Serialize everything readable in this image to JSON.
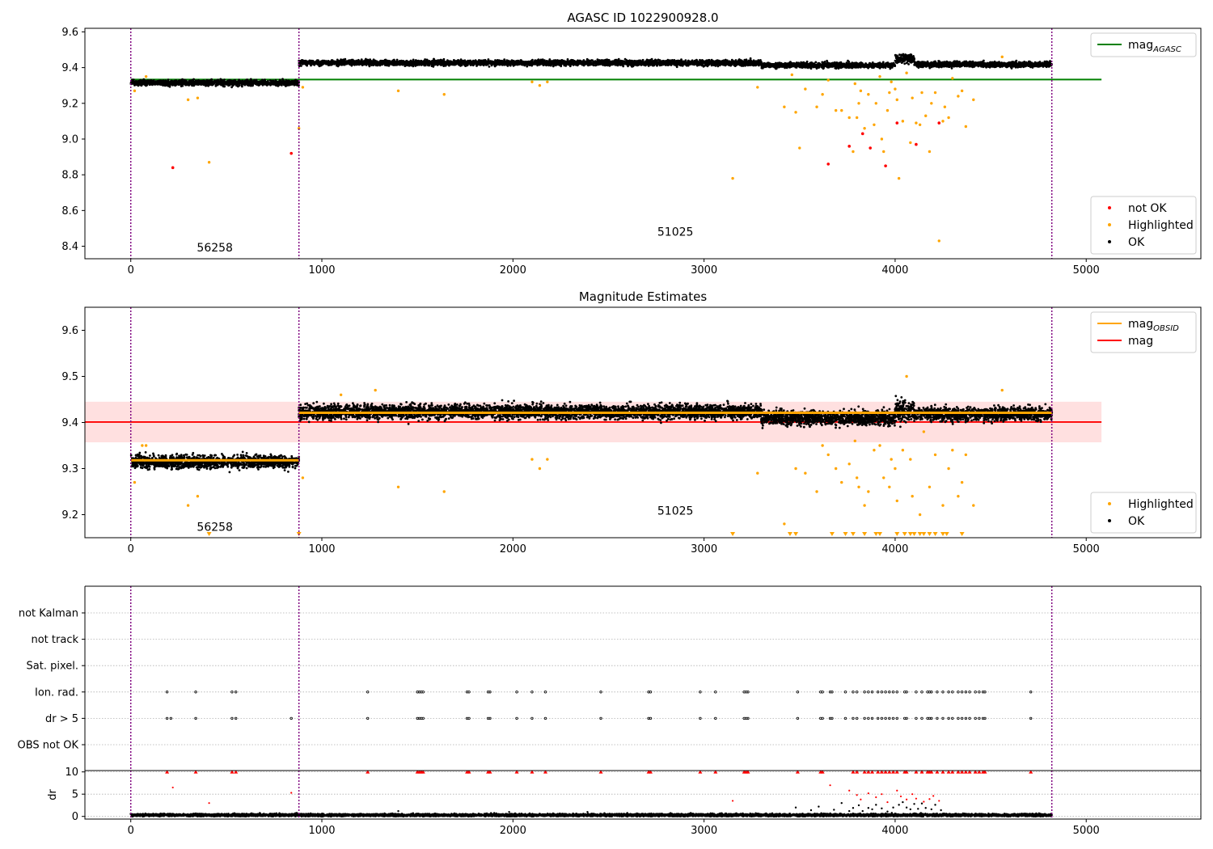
{
  "colors": {
    "ok": "#000000",
    "highlighted": "#ffa500",
    "not_ok": "#ff0000",
    "mag_agasc": "#008000",
    "mag": "#ff0000",
    "mag_obsid": "#ffa500",
    "mag_band": "#ffd6d6",
    "obsid_boundary": "#800080"
  },
  "chart_data": [
    {
      "type": "scatter",
      "title": "AGASC ID 1022900928.0",
      "xlabel": "",
      "ylabel": "",
      "xlim": [
        -240,
        5600
      ],
      "ylim": [
        8.33,
        9.62
      ],
      "xticks": [
        0,
        1000,
        2000,
        3000,
        4000,
        5000
      ],
      "yticks": [
        8.4,
        8.6,
        8.8,
        9.0,
        9.2,
        9.4,
        9.6
      ],
      "ytick_decimals": 1,
      "grid": false,
      "legend_top": {
        "position": "top-right",
        "entries": [
          {
            "label": "mag",
            "sub": "AGASC",
            "style": "line",
            "color": "#008000"
          }
        ]
      },
      "legend_bottom": {
        "position": "bottom-right",
        "entries": [
          {
            "label": "not OK",
            "style": "dot",
            "color": "#ff0000"
          },
          {
            "label": "Highlighted",
            "style": "dot",
            "color": "#ffa500"
          },
          {
            "label": "OK",
            "style": "dot",
            "color": "#000000"
          }
        ]
      },
      "obsid_boundaries": [
        0,
        880,
        4820
      ],
      "obsid_labels": [
        {
          "text": "56258",
          "x": 440,
          "y": 8.37
        },
        {
          "text": "51025",
          "x": 2850,
          "y": 8.46
        }
      ],
      "hlines": [
        {
          "name": "mag_AGASC",
          "y": 9.333,
          "x": [
            0,
            5080
          ],
          "color": "#008000"
        }
      ],
      "ok_segments": [
        {
          "x": [
            0,
            880
          ],
          "center": 9.315,
          "spread": 0.012
        },
        {
          "x": [
            880,
            3300
          ],
          "center": 9.427,
          "spread": 0.012
        },
        {
          "x": [
            3300,
            4000
          ],
          "center": 9.413,
          "spread": 0.012
        },
        {
          "x": [
            4000,
            4100
          ],
          "center": 9.45,
          "spread": 0.02
        },
        {
          "x": [
            4100,
            4820
          ],
          "center": 9.418,
          "spread": 0.012
        }
      ],
      "highlighted": [
        [
          20,
          9.27
        ],
        [
          80,
          9.35
        ],
        [
          300,
          9.22
        ],
        [
          350,
          9.23
        ],
        [
          410,
          8.87
        ],
        [
          880,
          9.06
        ],
        [
          900,
          9.29
        ],
        [
          1400,
          9.27
        ],
        [
          1640,
          9.25
        ],
        [
          2100,
          9.32
        ],
        [
          2140,
          9.3
        ],
        [
          2180,
          9.32
        ],
        [
          3150,
          8.78
        ],
        [
          3280,
          9.29
        ],
        [
          3420,
          9.18
        ],
        [
          3460,
          9.36
        ],
        [
          3480,
          9.15
        ],
        [
          3500,
          8.95
        ],
        [
          3530,
          9.28
        ],
        [
          3590,
          9.18
        ],
        [
          3620,
          9.25
        ],
        [
          3650,
          9.33
        ],
        [
          3690,
          9.16
        ],
        [
          3720,
          9.16
        ],
        [
          3760,
          9.12
        ],
        [
          3780,
          8.93
        ],
        [
          3790,
          9.31
        ],
        [
          3800,
          9.12
        ],
        [
          3810,
          9.2
        ],
        [
          3820,
          9.27
        ],
        [
          3840,
          9.06
        ],
        [
          3860,
          9.25
        ],
        [
          3890,
          9.08
        ],
        [
          3900,
          9.2
        ],
        [
          3920,
          9.35
        ],
        [
          3930,
          9.0
        ],
        [
          3940,
          8.93
        ],
        [
          3960,
          9.16
        ],
        [
          3970,
          9.26
        ],
        [
          3980,
          9.32
        ],
        [
          4000,
          9.28
        ],
        [
          4010,
          9.22
        ],
        [
          4020,
          8.78
        ],
        [
          4040,
          9.1
        ],
        [
          4060,
          9.37
        ],
        [
          4080,
          8.98
        ],
        [
          4090,
          9.23
        ],
        [
          4110,
          9.09
        ],
        [
          4130,
          9.08
        ],
        [
          4140,
          9.26
        ],
        [
          4160,
          9.13
        ],
        [
          4180,
          8.93
        ],
        [
          4190,
          9.2
        ],
        [
          4210,
          9.26
        ],
        [
          4230,
          8.43
        ],
        [
          4250,
          9.1
        ],
        [
          4260,
          9.18
        ],
        [
          4280,
          9.12
        ],
        [
          4300,
          9.34
        ],
        [
          4330,
          9.24
        ],
        [
          4350,
          9.27
        ],
        [
          4370,
          9.07
        ],
        [
          4410,
          9.22
        ],
        [
          4560,
          9.46
        ]
      ],
      "not_ok": [
        [
          220,
          8.84
        ],
        [
          840,
          8.92
        ],
        [
          3650,
          8.86
        ],
        [
          3760,
          8.96
        ],
        [
          3830,
          9.03
        ],
        [
          3870,
          8.95
        ],
        [
          3950,
          8.85
        ],
        [
          4010,
          9.09
        ],
        [
          4110,
          8.97
        ],
        [
          4230,
          9.09
        ]
      ]
    },
    {
      "type": "scatter",
      "title": "Magnitude Estimates",
      "xlabel": "",
      "ylabel": "",
      "xlim": [
        -240,
        5600
      ],
      "ylim": [
        9.15,
        9.65
      ],
      "xticks": [
        0,
        1000,
        2000,
        3000,
        4000,
        5000
      ],
      "yticks": [
        9.2,
        9.3,
        9.4,
        9.5,
        9.6
      ],
      "ytick_decimals": 1,
      "grid": false,
      "legend_top": {
        "position": "top-right",
        "entries": [
          {
            "label": "mag",
            "sub": "OBSID",
            "style": "line",
            "color": "#ffa500"
          },
          {
            "label": "mag",
            "style": "line",
            "color": "#ff0000"
          }
        ]
      },
      "legend_bottom": {
        "position": "bottom-right",
        "entries": [
          {
            "label": "Highlighted",
            "style": "dot",
            "color": "#ffa500"
          },
          {
            "label": "OK",
            "style": "dot",
            "color": "#000000"
          }
        ]
      },
      "obsid_boundaries": [
        0,
        880,
        4820
      ],
      "obsid_labels": [
        {
          "text": "56258",
          "x": 440,
          "y": 9.165
        },
        {
          "text": "51025",
          "x": 2850,
          "y": 9.2
        }
      ],
      "band": {
        "y": [
          9.357,
          9.445
        ],
        "x": [
          -240,
          5080
        ]
      },
      "hlines": [
        {
          "name": "mag",
          "y": 9.401,
          "x": [
            -240,
            5080
          ],
          "color": "#ff0000"
        }
      ],
      "obsid_lines": [
        {
          "x": [
            0,
            880
          ],
          "y": 9.318
        },
        {
          "x": [
            880,
            4820
          ],
          "y": 9.421
        }
      ],
      "ok_segments": [
        {
          "x": [
            0,
            880
          ],
          "center": 9.315,
          "spread": 0.012
        },
        {
          "x": [
            880,
            3300
          ],
          "center": 9.423,
          "spread": 0.013
        },
        {
          "x": [
            3300,
            4000
          ],
          "center": 9.41,
          "spread": 0.013
        },
        {
          "x": [
            4000,
            4100
          ],
          "center": 9.425,
          "spread": 0.02
        },
        {
          "x": [
            4100,
            4820
          ],
          "center": 9.418,
          "spread": 0.012
        }
      ],
      "highlighted": [
        [
          20,
          9.27
        ],
        [
          60,
          9.35
        ],
        [
          80,
          9.35
        ],
        [
          300,
          9.22
        ],
        [
          350,
          9.24
        ],
        [
          900,
          9.28
        ],
        [
          1100,
          9.46
        ],
        [
          1280,
          9.47
        ],
        [
          1400,
          9.26
        ],
        [
          1640,
          9.25
        ],
        [
          2100,
          9.32
        ],
        [
          2140,
          9.3
        ],
        [
          2180,
          9.32
        ],
        [
          3280,
          9.29
        ],
        [
          3420,
          9.18
        ],
        [
          3480,
          9.3
        ],
        [
          3530,
          9.29
        ],
        [
          3590,
          9.25
        ],
        [
          3620,
          9.35
        ],
        [
          3650,
          9.33
        ],
        [
          3690,
          9.3
        ],
        [
          3720,
          9.27
        ],
        [
          3760,
          9.31
        ],
        [
          3790,
          9.36
        ],
        [
          3800,
          9.28
        ],
        [
          3810,
          9.26
        ],
        [
          3840,
          9.22
        ],
        [
          3860,
          9.25
        ],
        [
          3890,
          9.34
        ],
        [
          3920,
          9.35
        ],
        [
          3940,
          9.28
        ],
        [
          3970,
          9.26
        ],
        [
          3980,
          9.32
        ],
        [
          4000,
          9.3
        ],
        [
          4010,
          9.23
        ],
        [
          4040,
          9.34
        ],
        [
          4060,
          9.5
        ],
        [
          4080,
          9.32
        ],
        [
          4090,
          9.24
        ],
        [
          4130,
          9.2
        ],
        [
          4150,
          9.38
        ],
        [
          4180,
          9.26
        ],
        [
          4210,
          9.33
        ],
        [
          4250,
          9.22
        ],
        [
          4280,
          9.3
        ],
        [
          4300,
          9.34
        ],
        [
          4330,
          9.24
        ],
        [
          4350,
          9.27
        ],
        [
          4370,
          9.33
        ],
        [
          4410,
          9.22
        ],
        [
          4560,
          9.47
        ]
      ],
      "below_range_x": [
        410,
        880,
        3150,
        3450,
        3480,
        3670,
        3740,
        3780,
        3840,
        3900,
        3920,
        4010,
        4050,
        4080,
        4100,
        4130,
        4150,
        4180,
        4210,
        4250,
        4270,
        4350
      ]
    },
    {
      "type": "scatter",
      "title": "",
      "xlabel": "",
      "ylabel": "",
      "xlim": [
        -240,
        5600
      ],
      "categories": [
        "not Kalman",
        "not track",
        "Sat. pixel.",
        "Ion. rad.",
        "dr > 5",
        "OBS not OK"
      ],
      "grid": true,
      "obsid_boundaries": [
        0,
        880,
        4820
      ],
      "flags": [
        {
          "category": "not Kalman",
          "x": []
        },
        {
          "category": "not track",
          "x": []
        },
        {
          "category": "Sat. pixel.",
          "x": []
        },
        {
          "category": "Ion. rad.",
          "x": [
            190,
            340,
            530,
            550,
            1240,
            1500,
            1510,
            1520,
            1530,
            1760,
            1770,
            1870,
            1880,
            2020,
            2100,
            2170,
            2460,
            2710,
            2720,
            2980,
            3060,
            3210,
            3220,
            3230,
            3490,
            3610,
            3620,
            3660,
            3670,
            3740,
            3780,
            3800,
            3840,
            3860,
            3880,
            3910,
            3930,
            3950,
            3970,
            3990,
            4010,
            4050,
            4060,
            4110,
            4140,
            4170,
            4180,
            4190,
            4220,
            4250,
            4280,
            4300,
            4330,
            4350,
            4370,
            4390,
            4420,
            4440,
            4460,
            4470,
            4710
          ]
        },
        {
          "category": "dr > 5",
          "x": [
            190,
            210,
            340,
            530,
            550,
            840,
            1240,
            1500,
            1510,
            1520,
            1530,
            1760,
            1770,
            1870,
            1880,
            2020,
            2100,
            2170,
            2460,
            2710,
            2720,
            2980,
            3060,
            3210,
            3220,
            3230,
            3490,
            3610,
            3620,
            3660,
            3670,
            3740,
            3780,
            3800,
            3840,
            3860,
            3880,
            3910,
            3930,
            3950,
            3970,
            3990,
            4010,
            4050,
            4060,
            4110,
            4140,
            4170,
            4180,
            4190,
            4220,
            4250,
            4280,
            4300,
            4330,
            4350,
            4370,
            4390,
            4420,
            4440,
            4460,
            4470,
            4710
          ]
        },
        {
          "category": "OBS not OK",
          "x": []
        }
      ]
    },
    {
      "type": "scatter",
      "title": "",
      "xlabel": "",
      "ylabel": "dr",
      "xlim": [
        -240,
        5600
      ],
      "ylim": [
        -0.6,
        10.3
      ],
      "xticks": [
        0,
        1000,
        2000,
        3000,
        4000,
        5000
      ],
      "yticks": [
        0,
        5,
        10
      ],
      "ytick_decimals": 0,
      "grid": true,
      "obsid_boundaries": [
        0,
        880,
        4820
      ],
      "clip_value": 10,
      "baseline": {
        "x": [
          0,
          4820
        ],
        "center": 0.3,
        "spread": 0.25
      },
      "small_points": [
        [
          1400,
          1.2
        ],
        [
          1980,
          1.0
        ],
        [
          2390,
          1.0
        ],
        [
          3480,
          2.0
        ],
        [
          3560,
          1.4
        ],
        [
          3600,
          2.2
        ],
        [
          3680,
          1.5
        ],
        [
          3720,
          3.0
        ],
        [
          3760,
          1.2
        ],
        [
          3780,
          1.9
        ],
        [
          3810,
          2.5
        ],
        [
          3830,
          1.2
        ],
        [
          3860,
          1.9
        ],
        [
          3880,
          1.6
        ],
        [
          3900,
          2.6
        ],
        [
          3930,
          1.8
        ],
        [
          3960,
          1.1
        ],
        [
          3990,
          2.0
        ],
        [
          4020,
          2.6
        ],
        [
          4040,
          3.2
        ],
        [
          4060,
          2.0
        ],
        [
          4080,
          1.6
        ],
        [
          4100,
          2.8
        ],
        [
          4120,
          1.7
        ],
        [
          4140,
          2.9
        ],
        [
          4160,
          1.9
        ],
        [
          4190,
          1.6
        ],
        [
          4210,
          2.6
        ],
        [
          4240,
          1.4
        ]
      ],
      "red_points": [
        [
          220,
          6.5
        ],
        [
          410,
          3.0
        ],
        [
          840,
          5.3
        ],
        [
          3150,
          3.5
        ],
        [
          3660,
          7.0
        ],
        [
          3760,
          5.8
        ],
        [
          3800,
          4.8
        ],
        [
          3820,
          3.8
        ],
        [
          3860,
          5.2
        ],
        [
          3900,
          4.3
        ],
        [
          3930,
          5.0
        ],
        [
          3960,
          3.2
        ],
        [
          4010,
          5.8
        ],
        [
          4030,
          4.5
        ],
        [
          4060,
          3.8
        ],
        [
          4090,
          5.0
        ],
        [
          4110,
          4.0
        ],
        [
          4150,
          3.3
        ],
        [
          4180,
          3.9
        ],
        [
          4200,
          4.6
        ],
        [
          4230,
          3.5
        ]
      ],
      "clipped_x": [
        190,
        340,
        530,
        550,
        1240,
        1500,
        1510,
        1520,
        1530,
        1760,
        1770,
        1870,
        1880,
        2020,
        2100,
        2170,
        2460,
        2710,
        2720,
        2980,
        3060,
        3210,
        3220,
        3230,
        3490,
        3610,
        3620,
        3780,
        3800,
        3840,
        3860,
        3880,
        3910,
        3930,
        3950,
        3970,
        3990,
        4010,
        4050,
        4060,
        4110,
        4140,
        4170,
        4180,
        4190,
        4220,
        4250,
        4280,
        4300,
        4330,
        4350,
        4370,
        4390,
        4420,
        4440,
        4460,
        4470,
        4710
      ]
    }
  ]
}
